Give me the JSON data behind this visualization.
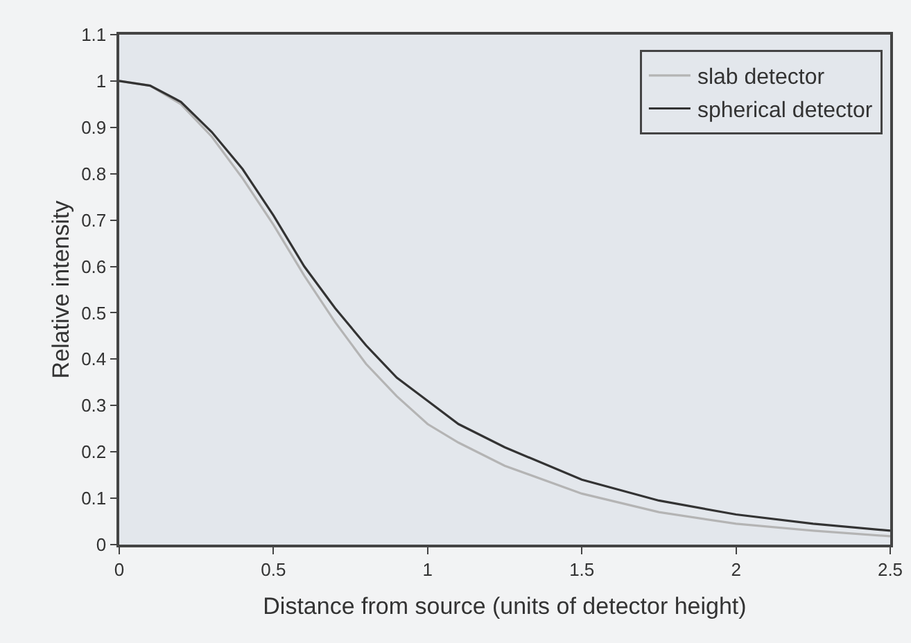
{
  "chart_data": {
    "type": "line",
    "xlabel": "Distance from source (units of detector height)",
    "ylabel": "Relative intensity",
    "xlim": [
      0,
      2.5
    ],
    "xticks": [
      0,
      0.5,
      1,
      1.5,
      2,
      2.5
    ],
    "ylim": [
      0,
      1.1
    ],
    "yticks": [
      0,
      0.1,
      0.2,
      0.3,
      0.4,
      0.5,
      0.6,
      0.7,
      0.8,
      0.9,
      1,
      1.1
    ],
    "grid": false,
    "legend": "top right",
    "marker": "none",
    "line_style": "solid",
    "series": [
      {
        "name": "slab detector",
        "color": "#b4b4b4",
        "x": [
          0,
          0.1,
          0.2,
          0.3,
          0.4,
          0.5,
          0.6,
          0.7,
          0.8,
          0.9,
          1,
          1.1,
          1.25,
          1.5,
          1.75,
          2,
          2.25,
          2.5
        ],
        "values": [
          1,
          0.99,
          0.95,
          0.88,
          0.79,
          0.69,
          0.58,
          0.48,
          0.39,
          0.32,
          0.26,
          0.22,
          0.17,
          0.11,
          0.07,
          0.045,
          0.03,
          0.018
        ]
      },
      {
        "name": "spherical detector",
        "color": "#333333",
        "x": [
          0,
          0.1,
          0.2,
          0.3,
          0.4,
          0.5,
          0.6,
          0.7,
          0.8,
          0.9,
          1,
          1.1,
          1.25,
          1.5,
          1.75,
          2,
          2.25,
          2.5
        ],
        "values": [
          1,
          0.99,
          0.955,
          0.89,
          0.81,
          0.71,
          0.6,
          0.51,
          0.43,
          0.36,
          0.31,
          0.26,
          0.21,
          0.14,
          0.095,
          0.065,
          0.045,
          0.03
        ]
      }
    ]
  }
}
